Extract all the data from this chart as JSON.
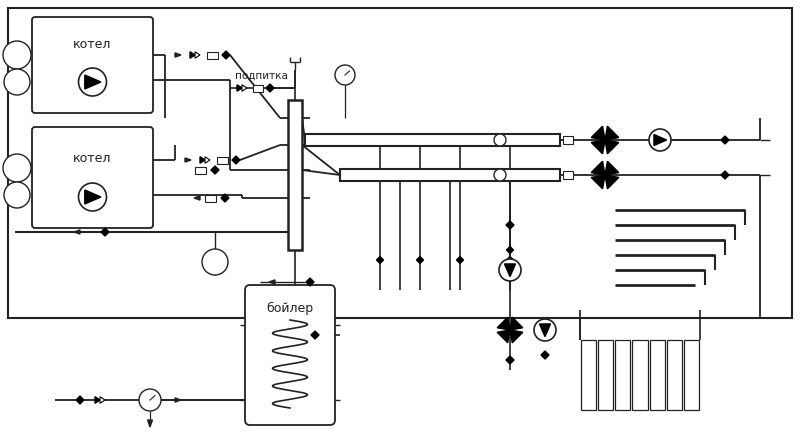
{
  "bg_color": "#ffffff",
  "line_color": "#222222",
  "figsize": [
    8.0,
    4.34
  ],
  "dpi": 100,
  "boiler1_label": "котел",
  "boiler2_label": "котел",
  "boiler_label": "бойлер",
  "makeup_label": "подпитка"
}
